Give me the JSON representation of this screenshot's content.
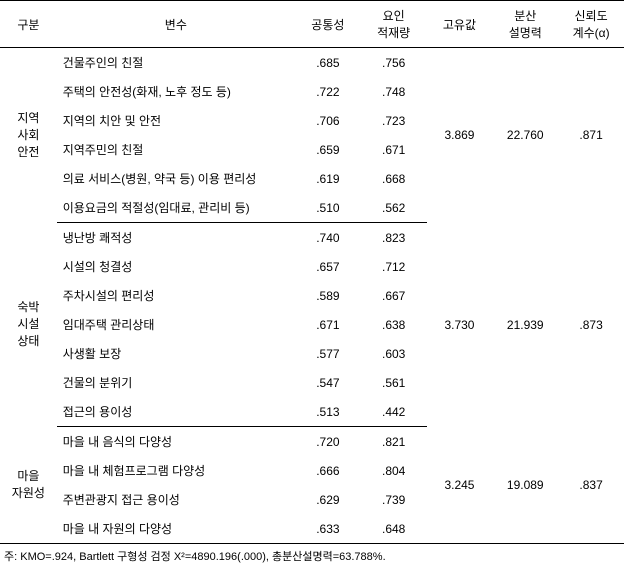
{
  "headers": {
    "category": "구분",
    "variable": "변수",
    "commonality": "공통성",
    "loading": "요인\n적재량",
    "eigenvalue": "고유값",
    "variance": "분산\n설명력",
    "reliability": "신뢰도\n계수(α)"
  },
  "groups": [
    {
      "name": "지역\n사회\n안전",
      "eigenvalue": "3.869",
      "variance": "22.760",
      "reliability": ".871",
      "rows": [
        {
          "label": "건물주인의 친절",
          "c": ".685",
          "l": ".756"
        },
        {
          "label": "주택의 안전성(화재, 노후 정도 등)",
          "c": ".722",
          "l": ".748"
        },
        {
          "label": "지역의 치안 및 안전",
          "c": ".706",
          "l": ".723"
        },
        {
          "label": "지역주민의 친절",
          "c": ".659",
          "l": ".671"
        },
        {
          "label": "의료 서비스(병원, 약국 등) 이용 편리성",
          "c": ".619",
          "l": ".668"
        },
        {
          "label": "이용요금의 적절성(임대료, 관리비 등)",
          "c": ".510",
          "l": ".562"
        }
      ]
    },
    {
      "name": "숙박\n시설\n상태",
      "eigenvalue": "3.730",
      "variance": "21.939",
      "reliability": ".873",
      "rows": [
        {
          "label": "냉난방 쾌적성",
          "c": ".740",
          "l": ".823"
        },
        {
          "label": "시설의 청결성",
          "c": ".657",
          "l": ".712"
        },
        {
          "label": "주차시설의 편리성",
          "c": ".589",
          "l": ".667"
        },
        {
          "label": "임대주택 관리상태",
          "c": ".671",
          "l": ".638"
        },
        {
          "label": "사생활 보장",
          "c": ".577",
          "l": ".603"
        },
        {
          "label": "건물의 분위기",
          "c": ".547",
          "l": ".561"
        },
        {
          "label": "접근의 용이성",
          "c": ".513",
          "l": ".442"
        }
      ]
    },
    {
      "name": "마을\n자원성",
      "eigenvalue": "3.245",
      "variance": "19.089",
      "reliability": ".837",
      "rows": [
        {
          "label": "마을 내 음식의 다양성",
          "c": ".720",
          "l": ".821"
        },
        {
          "label": "마을 내 체험프로그램 다양성",
          "c": ".666",
          "l": ".804"
        },
        {
          "label": "주변관광지 접근 용이성",
          "c": ".629",
          "l": ".739"
        },
        {
          "label": "마을 내 자원의 다양성",
          "c": ".633",
          "l": ".648"
        }
      ]
    }
  ],
  "footnote": "주: KMO=.924, Bartlett 구형성 검정 X²=4890.196(.000), 총분산설명력=63.788%."
}
